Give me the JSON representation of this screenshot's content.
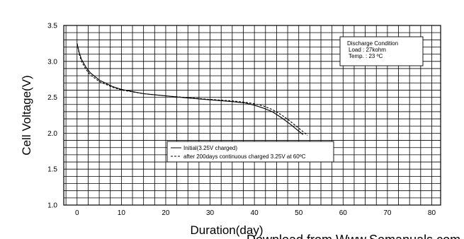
{
  "chart_data": {
    "type": "line",
    "xlabel": "Duration(day)",
    "ylabel": "Cell Voltage(V)",
    "xlim": [
      -3,
      82
    ],
    "ylim": [
      1.0,
      3.5
    ],
    "x_ticks": [
      "0",
      "10",
      "20",
      "30",
      "40",
      "50",
      "60",
      "70",
      "80"
    ],
    "y_ticks": [
      "1.0",
      "1.5",
      "2.0",
      "2.5",
      "3.0",
      "3.5"
    ],
    "grid": true,
    "series": [
      {
        "name": "Initial(3.25V charged)",
        "style": "solid",
        "color": "#000000",
        "points": [
          [
            0,
            3.25
          ],
          [
            0.5,
            3.12
          ],
          [
            1,
            3.03
          ],
          [
            2,
            2.92
          ],
          [
            3,
            2.84
          ],
          [
            5,
            2.74
          ],
          [
            8,
            2.65
          ],
          [
            10,
            2.61
          ],
          [
            15,
            2.55
          ],
          [
            20,
            2.52
          ],
          [
            25,
            2.49
          ],
          [
            30,
            2.465
          ],
          [
            35,
            2.44
          ],
          [
            38,
            2.42
          ],
          [
            40,
            2.39
          ],
          [
            42,
            2.35
          ],
          [
            44,
            2.3
          ],
          [
            46,
            2.22
          ],
          [
            48,
            2.13
          ],
          [
            50,
            2.03
          ],
          [
            51,
            1.98
          ]
        ]
      },
      {
        "name": "after 200days continuous charged 3.25V at 60ºC",
        "style": "dashed",
        "color": "#000000",
        "points": [
          [
            0,
            3.25
          ],
          [
            0.5,
            3.1
          ],
          [
            1,
            3.0
          ],
          [
            2,
            2.89
          ],
          [
            3,
            2.81
          ],
          [
            5,
            2.72
          ],
          [
            8,
            2.64
          ],
          [
            10,
            2.6
          ],
          [
            15,
            2.55
          ],
          [
            20,
            2.52
          ],
          [
            25,
            2.495
          ],
          [
            30,
            2.47
          ],
          [
            35,
            2.45
          ],
          [
            38,
            2.43
          ],
          [
            40,
            2.41
          ],
          [
            42,
            2.38
          ],
          [
            44,
            2.33
          ],
          [
            46,
            2.26
          ],
          [
            48,
            2.17
          ],
          [
            50,
            2.07
          ],
          [
            52,
            1.97
          ]
        ]
      }
    ],
    "annotations": {
      "condition_box": [
        "Discharge Condition",
        "Load : 27kohm",
        "Temp. : 23 ºC"
      ]
    }
  },
  "watermark": "Download from Www.Somanuals.com"
}
